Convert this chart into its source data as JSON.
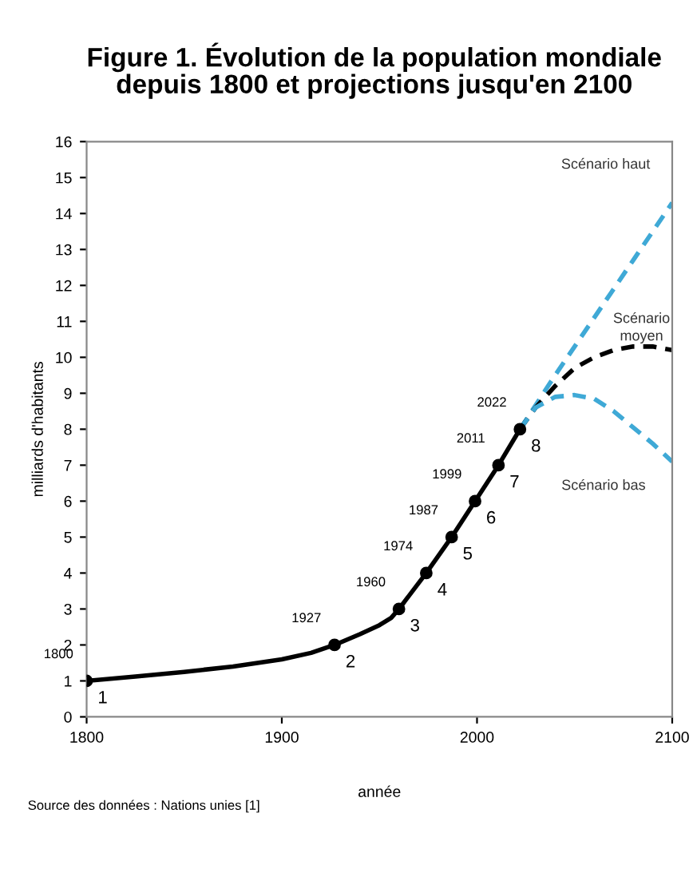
{
  "chart_data": {
    "type": "line",
    "title": "Figure 1. Évolution de la population mondiale\ndepuis 1800 et projections jusqu'en 2100",
    "xlabel": "année",
    "ylabel": "milliards d'habitants",
    "series": [
      {
        "color": "#000000",
        "line_style": "solid",
        "x": [
          1800,
          1825,
          1850,
          1875,
          1900,
          1915,
          1927,
          1940,
          1950,
          1956,
          1960,
          1974,
          1987,
          1999,
          2011,
          2022
        ],
        "values": [
          1,
          1.12,
          1.25,
          1.4,
          1.6,
          1.78,
          2,
          2.3,
          2.55,
          2.75,
          3,
          4,
          5,
          6,
          7,
          8
        ]
      },
      {
        "type": "scatter",
        "color": "#000000",
        "marker": "circle",
        "x": [
          1800,
          1927,
          1960,
          1974,
          1987,
          1999,
          2011,
          2022
        ],
        "values": [
          1,
          2,
          3,
          4,
          5,
          6,
          7,
          8
        ],
        "value_labels": [
          "1",
          "2",
          "3",
          "4",
          "5",
          "6",
          "7",
          "8"
        ]
      },
      {
        "type": "line",
        "name": "Scénario haut",
        "color": "#3fa9d6",
        "line_style": "dashed",
        "x": [
          2022,
          2040,
          2060,
          2080,
          2100
        ],
        "values": [
          8,
          9.5,
          11.1,
          12.7,
          14.3
        ]
      },
      {
        "type": "line",
        "name": "Scénario\nmoyen",
        "color": "#000000",
        "line_style": "dashed",
        "x": [
          2022,
          2030,
          2040,
          2050,
          2060,
          2070,
          2080,
          2090,
          2100
        ],
        "values": [
          8,
          8.6,
          9.2,
          9.7,
          10,
          10.2,
          10.3,
          10.3,
          10.2
        ]
      },
      {
        "type": "line",
        "name": "Scénario bas",
        "color": "#3fa9d6",
        "line_style": "dashed",
        "x": [
          2022,
          2030,
          2040,
          2050,
          2060,
          2070,
          2080,
          2090,
          2100
        ],
        "values": [
          8,
          8.6,
          8.9,
          8.95,
          8.85,
          8.5,
          8.05,
          7.6,
          7.1
        ]
      }
    ],
    "annotations": [
      {
        "text": "1800",
        "x": 1800,
        "y": 1
      },
      {
        "text": "1927",
        "x": 1927,
        "y": 2
      },
      {
        "text": "1960",
        "x": 1960,
        "y": 3
      },
      {
        "text": "1974",
        "x": 1974,
        "y": 4
      },
      {
        "text": "1987",
        "x": 1987,
        "y": 5
      },
      {
        "text": "1999",
        "x": 1999,
        "y": 6
      },
      {
        "text": "2011",
        "x": 2011,
        "y": 7
      },
      {
        "text": "2022",
        "x": 2022,
        "y": 8
      },
      "Source des données : Nations unies [1]"
    ],
    "xlim": [
      1800,
      2100
    ],
    "xticks": [
      1800,
      1900,
      2000,
      2100
    ],
    "ylim": [
      0,
      16
    ],
    "yticks": [
      0,
      1,
      2,
      3,
      4,
      5,
      6,
      7,
      8,
      9,
      10,
      11,
      12,
      13,
      14,
      15,
      16
    ],
    "grid": false,
    "legend": false
  }
}
